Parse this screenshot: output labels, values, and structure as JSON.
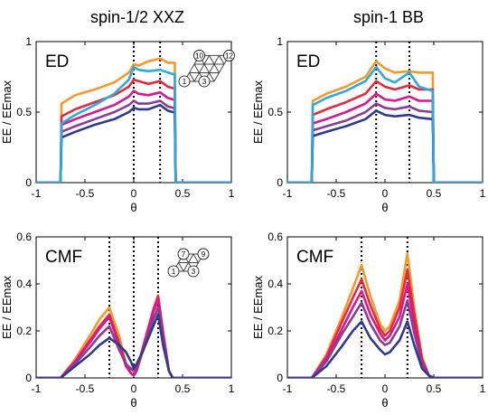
{
  "column_titles": [
    "spin-1/2 XXZ",
    "spin-1 BB"
  ],
  "colors": {
    "orange": "#f39a2b",
    "red": "#e8283b",
    "magenta": "#d9168b",
    "purple": "#8a3c96",
    "navy": "#2e3a8c",
    "cyan": "#29abe2"
  },
  "chart_data": [
    {
      "type": "line",
      "column": "spin-1/2 XXZ",
      "tag": "ED",
      "xlabel": "θ",
      "ylabel": "EE / EEmax",
      "xlim": [
        -1,
        1
      ],
      "ylim": [
        0,
        1
      ],
      "xticks": [
        "-1",
        "-0.5",
        "0",
        "0.5",
        "1"
      ],
      "yticks": [
        "0",
        "0.5",
        "1"
      ],
      "vlines": [
        0,
        0.27
      ],
      "inset_site_labels": [
        "10",
        "12",
        "1",
        "3"
      ],
      "x": [
        -1.0,
        -0.75,
        -0.74,
        -0.6,
        -0.4,
        -0.2,
        -0.05,
        0.0,
        0.05,
        0.15,
        0.27,
        0.35,
        0.4,
        0.42,
        0.43,
        1.0
      ],
      "series": [
        {
          "color": "orange",
          "values": [
            0,
            0,
            0.56,
            0.62,
            0.66,
            0.71,
            0.78,
            0.84,
            0.83,
            0.86,
            0.88,
            0.85,
            0.85,
            0.85,
            0,
            0
          ]
        },
        {
          "color": "red",
          "values": [
            0,
            0,
            0.47,
            0.52,
            0.57,
            0.62,
            0.68,
            0.73,
            0.72,
            0.7,
            0.72,
            0.68,
            0.67,
            0.67,
            0,
            0
          ]
        },
        {
          "color": "magenta",
          "values": [
            0,
            0,
            0.41,
            0.45,
            0.5,
            0.55,
            0.61,
            0.65,
            0.63,
            0.62,
            0.64,
            0.6,
            0.59,
            0.59,
            0,
            0
          ]
        },
        {
          "color": "purple",
          "values": [
            0,
            0,
            0.36,
            0.4,
            0.45,
            0.5,
            0.55,
            0.58,
            0.56,
            0.56,
            0.58,
            0.54,
            0.53,
            0.53,
            0,
            0
          ]
        },
        {
          "color": "navy",
          "values": [
            0,
            0,
            0.32,
            0.36,
            0.41,
            0.45,
            0.5,
            0.53,
            0.52,
            0.52,
            0.55,
            0.51,
            0.5,
            0.5,
            0,
            0
          ]
        },
        {
          "color": "cyan",
          "values": [
            0,
            0,
            0.42,
            0.48,
            0.55,
            0.63,
            0.73,
            0.82,
            0.8,
            0.79,
            0.8,
            0.78,
            0.77,
            0.77,
            0,
            0
          ]
        }
      ]
    },
    {
      "type": "line",
      "column": "spin-1 BB",
      "tag": "ED",
      "xlabel": "θ",
      "ylabel": "EE / EEmax",
      "xlim": [
        -1,
        1
      ],
      "ylim": [
        0,
        1
      ],
      "xticks": [
        "-1",
        "-0.5",
        "0",
        "0.5",
        "1"
      ],
      "yticks": [
        "0",
        "0.5",
        "1"
      ],
      "vlines": [
        -0.09,
        0.25
      ],
      "x": [
        -1.0,
        -0.75,
        -0.74,
        -0.6,
        -0.4,
        -0.2,
        -0.09,
        0.0,
        0.1,
        0.25,
        0.35,
        0.49,
        0.5,
        1.0
      ],
      "series": [
        {
          "color": "orange",
          "values": [
            0,
            0,
            0.58,
            0.63,
            0.68,
            0.75,
            0.86,
            0.81,
            0.78,
            0.79,
            0.78,
            0.78,
            0,
            0
          ]
        },
        {
          "color": "red",
          "values": [
            0,
            0,
            0.48,
            0.52,
            0.57,
            0.63,
            0.72,
            0.68,
            0.66,
            0.69,
            0.66,
            0.66,
            0,
            0
          ]
        },
        {
          "color": "magenta",
          "values": [
            0,
            0,
            0.42,
            0.45,
            0.5,
            0.56,
            0.63,
            0.59,
            0.58,
            0.61,
            0.58,
            0.58,
            0,
            0
          ]
        },
        {
          "color": "purple",
          "values": [
            0,
            0,
            0.37,
            0.4,
            0.44,
            0.5,
            0.56,
            0.53,
            0.52,
            0.54,
            0.51,
            0.5,
            0,
            0
          ]
        },
        {
          "color": "navy",
          "values": [
            0,
            0,
            0.33,
            0.36,
            0.4,
            0.45,
            0.51,
            0.48,
            0.47,
            0.48,
            0.46,
            0.45,
            0,
            0
          ]
        },
        {
          "color": "cyan",
          "values": [
            0,
            0,
            0.55,
            0.6,
            0.65,
            0.72,
            0.82,
            0.74,
            0.71,
            0.78,
            0.68,
            0.65,
            0,
            0
          ]
        }
      ]
    },
    {
      "type": "line",
      "column": "spin-1/2 XXZ",
      "tag": "CMF",
      "xlabel": "θ",
      "ylabel": "EE / EEmax",
      "xlim": [
        -1,
        1
      ],
      "ylim": [
        0,
        0.6
      ],
      "xticks": [
        "-1",
        "-0.5",
        "0",
        "0.5",
        "1"
      ],
      "yticks": [
        "0",
        "0.2",
        "0.4",
        "0.6"
      ],
      "vlines": [
        -0.25,
        0,
        0.25
      ],
      "inset_site_labels": [
        "7",
        "9",
        "1",
        "3"
      ],
      "x": [
        -1.0,
        -0.75,
        -0.6,
        -0.45,
        -0.35,
        -0.25,
        -0.15,
        -0.08,
        -0.03,
        0.0,
        0.03,
        0.1,
        0.2,
        0.25,
        0.3,
        0.36,
        0.4,
        1.0
      ],
      "series": [
        {
          "color": "orange",
          "values": [
            0,
            0,
            0.08,
            0.18,
            0.25,
            0.3,
            0.18,
            0.06,
            0.02,
            0.01,
            0.03,
            0.12,
            0.25,
            0.29,
            0.18,
            0.03,
            0,
            0
          ]
        },
        {
          "color": "red",
          "values": [
            0,
            0,
            0.07,
            0.16,
            0.22,
            0.27,
            0.15,
            0.06,
            0.02,
            0.01,
            0.03,
            0.14,
            0.29,
            0.35,
            0.2,
            0.03,
            0,
            0
          ]
        },
        {
          "color": "magenta",
          "values": [
            0,
            0,
            0.07,
            0.15,
            0.21,
            0.26,
            0.14,
            0.05,
            0.02,
            0.01,
            0.03,
            0.13,
            0.28,
            0.33,
            0.19,
            0.03,
            0,
            0
          ]
        },
        {
          "color": "purple",
          "values": [
            0,
            0,
            0.06,
            0.13,
            0.18,
            0.22,
            0.12,
            0.06,
            0.04,
            0.03,
            0.05,
            0.12,
            0.25,
            0.3,
            0.17,
            0.03,
            0,
            0
          ]
        },
        {
          "color": "navy",
          "values": [
            0,
            0,
            0.05,
            0.1,
            0.14,
            0.17,
            0.14,
            0.11,
            0.07,
            0.04,
            0.06,
            0.12,
            0.22,
            0.27,
            0.14,
            0.03,
            0,
            0
          ]
        }
      ]
    },
    {
      "type": "line",
      "column": "spin-1 BB",
      "tag": "CMF",
      "xlabel": "θ",
      "ylabel": "EE / EEmax",
      "xlim": [
        -1,
        1
      ],
      "ylim": [
        0,
        0.6
      ],
      "xticks": [
        "-1",
        "-0.5",
        "0",
        "0.5",
        "1"
      ],
      "yticks": [
        "0",
        "0.2",
        "0.4",
        "0.6"
      ],
      "vlines": [
        -0.24,
        0.23
      ],
      "x": [
        -1.0,
        -0.75,
        -0.6,
        -0.45,
        -0.33,
        -0.24,
        -0.15,
        -0.05,
        0.0,
        0.05,
        0.15,
        0.23,
        0.3,
        0.38,
        0.45,
        0.5,
        1.0
      ],
      "series": [
        {
          "color": "orange",
          "values": [
            0,
            0,
            0.1,
            0.25,
            0.38,
            0.48,
            0.35,
            0.23,
            0.2,
            0.22,
            0.33,
            0.53,
            0.3,
            0.09,
            0.01,
            0,
            0
          ]
        },
        {
          "color": "red",
          "values": [
            0,
            0,
            0.09,
            0.23,
            0.34,
            0.42,
            0.31,
            0.21,
            0.18,
            0.2,
            0.3,
            0.46,
            0.27,
            0.08,
            0.01,
            0,
            0
          ]
        },
        {
          "color": "magenta",
          "values": [
            0,
            0,
            0.08,
            0.2,
            0.3,
            0.37,
            0.27,
            0.19,
            0.16,
            0.18,
            0.26,
            0.4,
            0.23,
            0.07,
            0.01,
            0,
            0
          ]
        },
        {
          "color": "purple",
          "values": [
            0,
            0,
            0.07,
            0.18,
            0.26,
            0.32,
            0.23,
            0.16,
            0.14,
            0.15,
            0.22,
            0.33,
            0.19,
            0.06,
            0.01,
            0,
            0
          ]
        },
        {
          "color": "navy",
          "values": [
            0,
            0,
            0.05,
            0.13,
            0.2,
            0.24,
            0.17,
            0.12,
            0.1,
            0.11,
            0.16,
            0.24,
            0.14,
            0.04,
            0.01,
            0,
            0
          ]
        }
      ]
    }
  ]
}
